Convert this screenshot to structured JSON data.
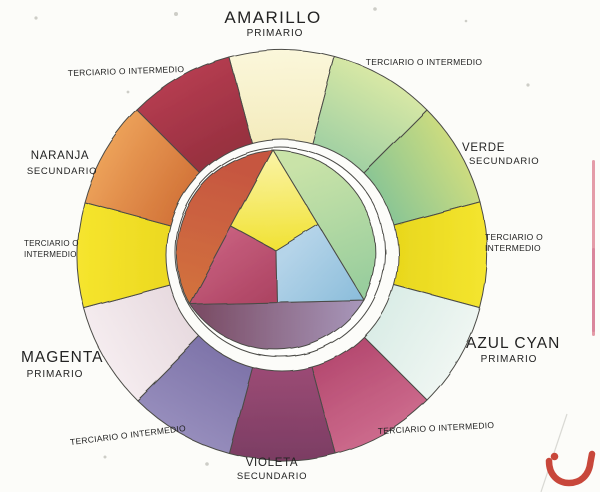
{
  "page": {
    "background": "#FCFCF9"
  },
  "labels": {
    "amarillo": {
      "name": "AMARILLO",
      "role": "PRIMARIO"
    },
    "tert_top_right": "TERCIARIO O INTERMEDIO",
    "verde": {
      "name": "VERDE",
      "role": "SECUNDARIO"
    },
    "tert_right": {
      "line1": "TERCIARIO O",
      "line2": "INTERMEDIO"
    },
    "azul_cyan": {
      "name": "AZUL CYAN",
      "role": "PRIMARIO"
    },
    "tert_bottom_right": "TERCIARIO O INTERMEDIO",
    "violeta": {
      "name": "VIOLETA",
      "role": "SECUNDARIO"
    },
    "tert_bottom_left": "TERCIARIO O INTERMEDIO",
    "magenta": {
      "name": "MAGENTA",
      "role": "PRIMARIO"
    },
    "tert_left": {
      "line1": "TERCIARIO O",
      "line2": "INTERMEDIO"
    },
    "naranja": {
      "name": "NARANJA",
      "role": "SECUNDARIO"
    },
    "tert_top_left": "TERCIARIO O INTERMEDIO"
  },
  "wheel": {
    "outline_color": "#4B4B46",
    "ring_segments": [
      {
        "slug": "amarillo-primario",
        "clock": "12",
        "colors": [
          "#FBF7DB",
          "#F4ECBE"
        ]
      },
      {
        "slug": "terciario-amarillo-verde",
        "clock": "1",
        "colors": [
          "#D8E8A5",
          "#A3D1A3"
        ]
      },
      {
        "slug": "verde-secundario",
        "clock": "2",
        "colors": [
          "#CDDC7F",
          "#8CC694"
        ]
      },
      {
        "slug": "terciario-verde-azul",
        "clock": "3",
        "colors": [
          "#F4E52F",
          "#E9D81E"
        ]
      },
      {
        "slug": "azul-cyan-primario",
        "clock": "4",
        "colors": [
          "#EFF6F2",
          "#DBEDE7"
        ]
      },
      {
        "slug": "terciario-azul-violeta",
        "clock": "5",
        "colors": [
          "#CC6A8C",
          "#B64B71"
        ]
      },
      {
        "slug": "violeta-secundario",
        "clock": "6",
        "colors": [
          "#7B3D63",
          "#9A4A74"
        ]
      },
      {
        "slug": "terciario-violeta-magenta",
        "clock": "7",
        "colors": [
          "#968DBC",
          "#7F75AA"
        ]
      },
      {
        "slug": "magenta-primario",
        "clock": "8",
        "colors": [
          "#F5ECEF",
          "#E8DBE0"
        ]
      },
      {
        "slug": "terciario-magenta-naranja",
        "clock": "9",
        "colors": [
          "#F6E52E",
          "#ECD920"
        ]
      },
      {
        "slug": "naranja-secundario",
        "clock": "10",
        "colors": [
          "#ECA159",
          "#D4763A"
        ]
      },
      {
        "slug": "terciario-naranja-amarillo",
        "clock": "11",
        "colors": [
          "#B43C50",
          "#97303F"
        ]
      }
    ],
    "inner_regions": [
      {
        "slug": "segmento-naranja",
        "colors": [
          "#C65640",
          "#D2713E"
        ]
      },
      {
        "slug": "segmento-verde",
        "colors": [
          "#C9E3A8",
          "#98CD9D"
        ]
      },
      {
        "slug": "segmento-violeta",
        "colors": [
          "#7B4D66",
          "#A796B9"
        ]
      },
      {
        "slug": "triangulo-amarillo",
        "colors": [
          "#FAF3A3",
          "#F1E233"
        ]
      },
      {
        "slug": "triangulo-magenta",
        "colors": [
          "#C8607F",
          "#AE4564"
        ]
      },
      {
        "slug": "triangulo-azul",
        "colors": [
          "#B5D4E9",
          "#8DBEDB"
        ]
      }
    ]
  },
  "artifacts": {
    "logo_color": "#C8473B",
    "edge_line_color": "#E49CA8",
    "edge_line_dark_color": "#D8849A",
    "crease_color": "#D9D9D4",
    "speck_color": "#B9B9B2"
  }
}
